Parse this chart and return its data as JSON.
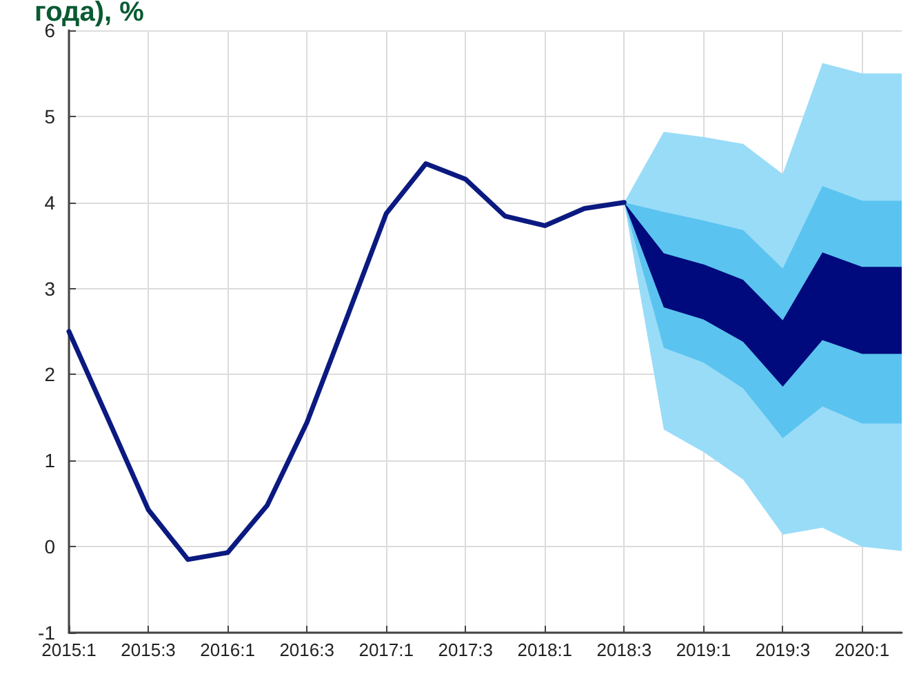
{
  "chart_data": {
    "type": "line",
    "title": "года), %",
    "categories": [
      "2015:1",
      null,
      "2015:3",
      null,
      "2016:1",
      null,
      "2016:3",
      null,
      "2017:1",
      null,
      "2017:3",
      null,
      "2018:1",
      null,
      "2018:3",
      null,
      "2019:1",
      null,
      "2019:3",
      null,
      "2020:1",
      null
    ],
    "ylim": [
      -1,
      6
    ],
    "yticks": [
      -1,
      0,
      1,
      2,
      3,
      4,
      5,
      6
    ],
    "grid": true,
    "marker": "none",
    "line_style": "solid",
    "series": [
      {
        "type": "area",
        "color": "#99dcf8",
        "values": [
          null,
          null,
          null,
          null,
          null,
          null,
          null,
          null,
          null,
          null,
          null,
          null,
          null,
          null,
          null,
          null,
          null,
          null,
          null,
          null,
          null,
          null
        ],
        "lower": [
          null,
          null,
          null,
          null,
          null,
          null,
          null,
          null,
          null,
          null,
          null,
          null,
          null,
          null,
          4.0,
          1.36,
          1.1,
          0.78,
          0.14,
          0.22,
          0.0,
          -0.05
        ],
        "upper": [
          null,
          null,
          null,
          null,
          null,
          null,
          null,
          null,
          null,
          null,
          null,
          null,
          null,
          null,
          4.0,
          4.82,
          4.76,
          4.68,
          4.33,
          5.62,
          5.5,
          5.5
        ]
      },
      {
        "type": "area",
        "color": "#5bc3ef",
        "values": [
          null,
          null,
          null,
          null,
          null,
          null,
          null,
          null,
          null,
          null,
          null,
          null,
          null,
          null,
          null,
          null,
          null,
          null,
          null,
          null,
          null,
          null
        ],
        "lower": [
          null,
          null,
          null,
          null,
          null,
          null,
          null,
          null,
          null,
          null,
          null,
          null,
          null,
          null,
          4.0,
          2.31,
          2.14,
          1.84,
          1.26,
          1.63,
          1.43,
          1.43
        ],
        "upper": [
          null,
          null,
          null,
          null,
          null,
          null,
          null,
          null,
          null,
          null,
          null,
          null,
          null,
          null,
          4.0,
          3.89,
          3.79,
          3.68,
          3.23,
          4.19,
          4.02,
          4.02
        ]
      },
      {
        "type": "area",
        "color": "#010a7c",
        "values": [
          null,
          null,
          null,
          null,
          null,
          null,
          null,
          null,
          null,
          null,
          null,
          null,
          null,
          null,
          null,
          null,
          null,
          null,
          null,
          null,
          null,
          null
        ],
        "lower": [
          null,
          null,
          null,
          null,
          null,
          null,
          null,
          null,
          null,
          null,
          null,
          null,
          null,
          null,
          4.0,
          2.78,
          2.64,
          2.38,
          1.86,
          2.4,
          2.24,
          2.24
        ],
        "upper": [
          null,
          null,
          null,
          null,
          null,
          null,
          null,
          null,
          null,
          null,
          null,
          null,
          null,
          null,
          4.0,
          3.41,
          3.28,
          3.1,
          2.63,
          3.42,
          3.25,
          3.25
        ]
      },
      {
        "color": "#0b1a80",
        "values": [
          2.5,
          1.47,
          0.43,
          -0.15,
          -0.07,
          0.48,
          1.44,
          2.65,
          3.87,
          4.45,
          4.27,
          3.84,
          3.73,
          3.93,
          4.0,
          null,
          null,
          null,
          null,
          null,
          null,
          null
        ]
      }
    ]
  }
}
